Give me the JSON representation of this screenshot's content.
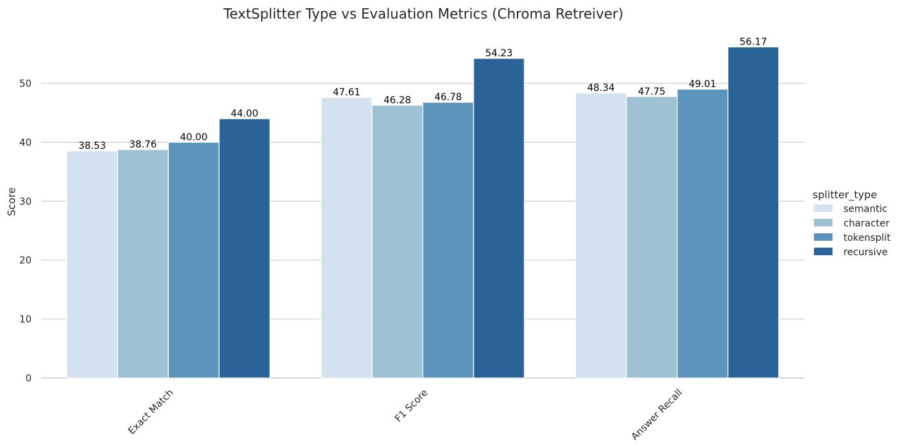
{
  "chart_data": {
    "type": "bar",
    "title": "TextSplitter Type vs Evaluation Metrics (Chroma Retreiver)",
    "xlabel": "",
    "ylabel": "Score",
    "categories": [
      "Exact Match",
      "F1 Score",
      "Answer Recall"
    ],
    "ylim": [
      0,
      57.5
    ],
    "yticks": [
      0,
      10,
      20,
      30,
      40,
      50
    ],
    "grid": "horizontal",
    "legend": {
      "title": "splitter_type",
      "placement": "right"
    },
    "series": [
      {
        "name": "semantic",
        "color": "#d4e2ef",
        "values": [
          38.53,
          47.61,
          48.34
        ],
        "labels": [
          "38.53",
          "47.61",
          "48.34"
        ]
      },
      {
        "name": "character",
        "color": "#9ec1d4",
        "values": [
          38.76,
          46.28,
          47.75
        ],
        "labels": [
          "38.76",
          "46.28",
          "47.75"
        ]
      },
      {
        "name": "tokensplit",
        "color": "#5b95bb",
        "values": [
          40.0,
          46.78,
          49.01
        ],
        "labels": [
          "40.00",
          "46.78",
          "49.01"
        ]
      },
      {
        "name": "recursive",
        "color": "#296398",
        "values": [
          44.0,
          54.23,
          56.17
        ],
        "labels": [
          "44.00",
          "54.23",
          "56.17"
        ]
      }
    ]
  }
}
